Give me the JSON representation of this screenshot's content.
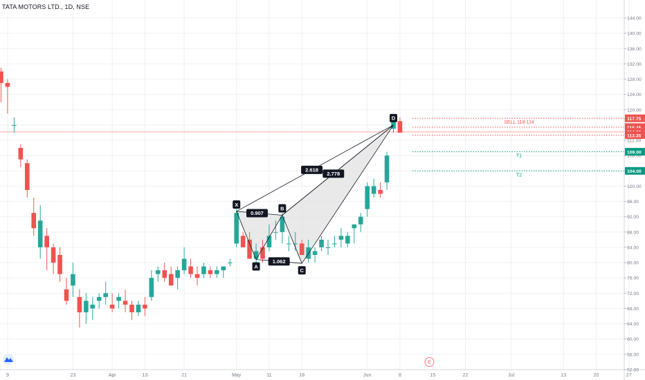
{
  "header": {
    "symbol_title": "TATA MOTORS LTD., 1D, NSE"
  },
  "colors": {
    "up": "#26a69a",
    "down": "#ef5350",
    "grid": "#eef0f3",
    "axis_text": "#787b86",
    "pattern_fill": "#e0e0e0",
    "pattern_line": "#131722",
    "sell_line": "#ef5350",
    "target_line": "#089981",
    "last_price_line": "#f4a69f"
  },
  "chart_data": {
    "type": "candlestick",
    "title": "TATA MOTORS LTD., 1D, NSE",
    "ylim": [
      50,
      146
    ],
    "y_ticks": [
      "52.00",
      "56.00",
      "60.00",
      "64.00",
      "68.00",
      "72.00",
      "76.00",
      "80.00",
      "84.00",
      "88.00",
      "92.00",
      "96.00",
      "100.00",
      "104.00",
      "108.00",
      "112.00",
      "116.00",
      "120.00",
      "124.00",
      "128.00",
      "132.00",
      "136.00",
      "140.00",
      "144.00"
    ],
    "x_ticks": [
      {
        "label": "9",
        "bar": 1
      },
      {
        "label": "23",
        "bar": 11
      },
      {
        "label": "Apr",
        "bar": 17
      },
      {
        "label": "13",
        "bar": 22
      },
      {
        "label": "21",
        "bar": 28
      },
      {
        "label": "May",
        "bar": 36
      },
      {
        "label": "11",
        "bar": 41
      },
      {
        "label": "18",
        "bar": 46
      },
      {
        "label": "Jun",
        "bar": 56
      },
      {
        "label": "8",
        "bar": 61
      },
      {
        "label": "15",
        "bar": 66
      },
      {
        "label": "22",
        "bar": 71
      },
      {
        "label": "Jul",
        "bar": 78
      },
      {
        "label": "13",
        "bar": 86
      },
      {
        "label": "20",
        "bar": 91
      },
      {
        "label": "27",
        "bar": 96
      }
    ],
    "candles": [
      [
        130,
        131,
        122,
        127
      ],
      [
        127,
        128,
        119,
        126
      ],
      [
        116,
        118,
        114,
        116
      ],
      [
        110,
        111,
        105,
        107
      ],
      [
        106,
        107,
        97,
        99
      ],
      [
        93,
        97,
        87,
        89
      ],
      [
        84,
        95,
        81,
        91
      ],
      [
        87,
        89,
        78,
        84
      ],
      [
        84,
        85,
        77,
        80
      ],
      [
        82,
        84,
        75,
        77
      ],
      [
        73,
        76,
        69,
        70
      ],
      [
        74,
        80,
        71,
        77
      ],
      [
        71,
        73,
        63,
        67
      ],
      [
        67,
        72,
        64,
        70
      ],
      [
        68,
        71,
        65,
        69
      ],
      [
        70,
        72,
        68,
        71
      ],
      [
        71,
        75,
        69,
        72
      ],
      [
        69,
        72,
        67,
        68
      ],
      [
        70,
        72,
        68,
        71
      ],
      [
        70,
        73,
        67,
        69
      ],
      [
        69,
        70,
        65,
        67
      ],
      [
        67,
        70,
        66,
        69
      ],
      [
        69,
        71,
        66,
        68
      ],
      [
        71,
        78,
        70,
        76
      ],
      [
        77,
        79,
        75,
        78
      ],
      [
        78,
        80,
        75,
        76
      ],
      [
        77,
        79,
        74,
        74
      ],
      [
        76,
        79,
        73,
        78
      ],
      [
        78,
        84,
        77,
        81
      ],
      [
        79,
        81,
        76,
        77
      ],
      [
        77,
        79,
        74,
        76
      ],
      [
        77,
        80,
        76,
        79
      ],
      [
        78,
        79,
        76,
        77
      ],
      [
        77,
        79,
        76,
        78
      ],
      [
        78,
        79,
        76,
        79
      ],
      [
        80,
        81,
        79,
        80
      ],
      [
        85,
        94,
        84,
        93
      ],
      [
        87,
        88,
        84,
        84
      ],
      [
        86,
        88,
        81,
        81
      ],
      [
        81,
        85,
        80,
        83
      ],
      [
        84,
        86,
        80,
        81
      ],
      [
        84,
        90,
        83,
        87
      ],
      [
        88,
        91,
        86,
        88
      ],
      [
        88,
        93,
        85,
        92
      ],
      [
        85,
        87,
        83,
        85
      ],
      [
        85,
        88,
        83,
        85
      ],
      [
        85,
        86,
        82,
        82
      ],
      [
        81,
        86,
        80,
        84
      ],
      [
        82,
        84,
        80,
        83
      ],
      [
        84,
        87,
        83,
        86
      ],
      [
        84,
        86,
        82,
        84
      ],
      [
        85,
        87,
        84,
        85
      ],
      [
        86,
        89,
        84,
        87
      ],
      [
        85,
        88,
        84,
        87
      ],
      [
        89,
        90,
        85,
        90
      ],
      [
        90,
        93,
        88,
        92
      ],
      [
        94,
        101,
        92,
        100
      ],
      [
        98,
        102,
        97,
        100
      ],
      [
        99,
        101,
        97,
        98
      ],
      [
        101,
        109,
        99,
        108
      ],
      [
        115,
        118,
        114,
        117
      ],
      [
        117,
        118,
        114,
        114
      ]
    ],
    "pattern": {
      "points": [
        {
          "label": "X",
          "bar": 36,
          "price": 93.4
        },
        {
          "label": "A",
          "bar": 39,
          "price": 80.8
        },
        {
          "label": "B",
          "bar": 43,
          "price": 92.4
        },
        {
          "label": "C",
          "bar": 46,
          "price": 79.8
        },
        {
          "label": "D",
          "bar": 60,
          "price": 116.0
        }
      ],
      "ratios": [
        {
          "label": "0.907",
          "from": "X",
          "to": "B"
        },
        {
          "label": "1.062",
          "from": "A",
          "to": "C"
        },
        {
          "label": "2.618",
          "from": "X",
          "to": "D"
        },
        {
          "label": "2.778",
          "from": "B",
          "to": "D"
        }
      ]
    },
    "levels": [
      {
        "price": 117.75,
        "label": "117.75",
        "text": "SELL 118-114",
        "kind": "sell"
      },
      {
        "price": 115.45,
        "label": "115.45",
        "text": "",
        "kind": "sell"
      },
      {
        "price": 114.2,
        "label": "114.20",
        "text": "",
        "kind": "last"
      },
      {
        "price": 113.35,
        "label": "113.35",
        "text": "",
        "kind": "sell"
      },
      {
        "price": 109.0,
        "label": "109.00",
        "text": "T1",
        "kind": "target"
      },
      {
        "price": 104.0,
        "label": "104.00",
        "text": "T2",
        "kind": "target"
      }
    ],
    "event_marker": "E"
  }
}
